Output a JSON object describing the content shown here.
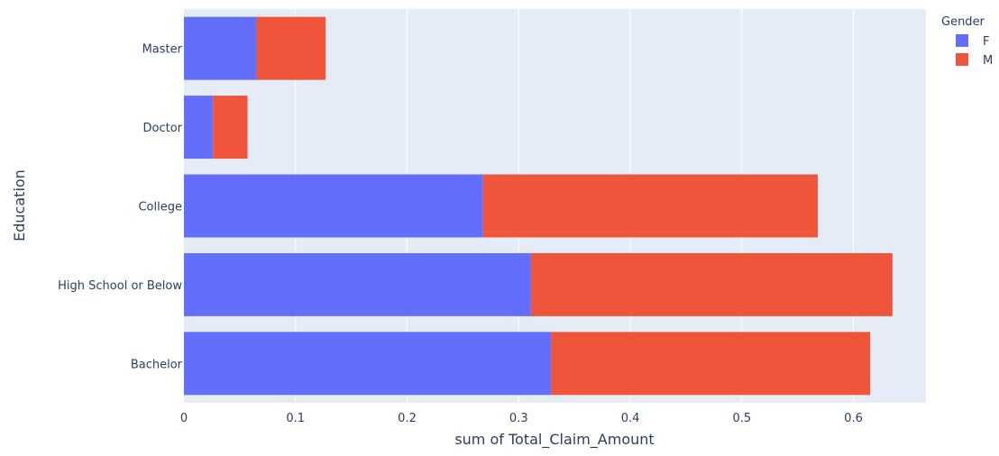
{
  "chart_data": {
    "type": "bar",
    "orientation": "horizontal",
    "barmode": "stack",
    "categories": [
      "Bachelor",
      "High School or Below",
      "College",
      "Doctor",
      "Master"
    ],
    "series": [
      {
        "name": "F",
        "color": "#636efa",
        "values": [
          0.329,
          0.311,
          0.268,
          0.026,
          0.065
        ]
      },
      {
        "name": "M",
        "color": "#ef553b",
        "values": [
          0.286,
          0.324,
          0.3,
          0.031,
          0.062
        ]
      }
    ],
    "xlabel": "sum of Total_Claim_Amount",
    "ylabel": "Education",
    "xlim": [
      0,
      0.665
    ],
    "xticks": [
      0,
      0.1,
      0.2,
      0.3,
      0.4,
      0.5,
      0.6
    ],
    "xtick_labels": [
      "0",
      "0.1",
      "0.2",
      "0.3",
      "0.4",
      "0.5",
      "0.6"
    ],
    "grid": true,
    "plot_background": "#e5ecf6",
    "legend": {
      "title": "Gender",
      "placement": "top-right"
    }
  }
}
